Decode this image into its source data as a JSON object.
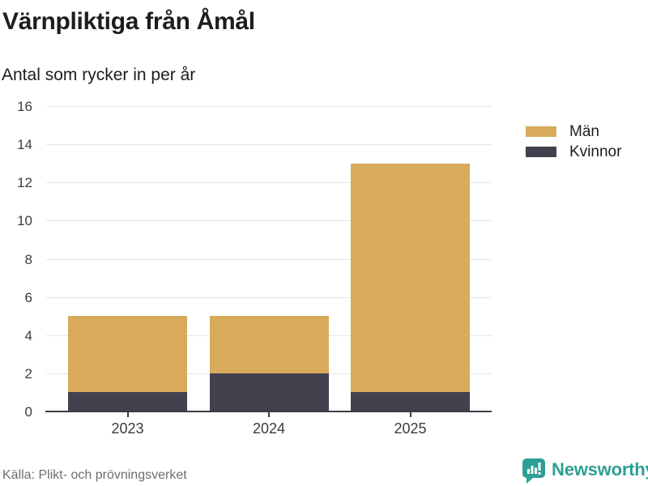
{
  "header": {
    "title": "Värnpliktiga från Åmål",
    "subtitle": "Antal som rycker in per år"
  },
  "chart_data": {
    "type": "bar",
    "stacked": true,
    "title": "Värnpliktiga från Åmål",
    "subtitle": "Antal som rycker in per år",
    "categories": [
      "2023",
      "2024",
      "2025"
    ],
    "series": [
      {
        "name": "Män",
        "color": "#d8ab5c",
        "values": [
          4,
          3,
          12
        ]
      },
      {
        "name": "Kvinnor",
        "color": "#43414e",
        "values": [
          1,
          2,
          1
        ]
      }
    ],
    "totals": [
      5,
      5,
      13
    ],
    "xlabel": "",
    "ylabel": "",
    "ylim": [
      0,
      16
    ],
    "ytick_step": 2,
    "grid": true,
    "legend_position": "right"
  },
  "footer": {
    "source": "Källa: Plikt- och prövningsverket",
    "brand": "Newsworthy"
  },
  "colors": {
    "men": "#d8ab5c",
    "women": "#43414e",
    "accent_teal": "#2f9e94",
    "grid": "#e6e6e6",
    "axis": "#3d3c46",
    "text": "#1d1d1b",
    "muted": "#6d6d6d"
  }
}
